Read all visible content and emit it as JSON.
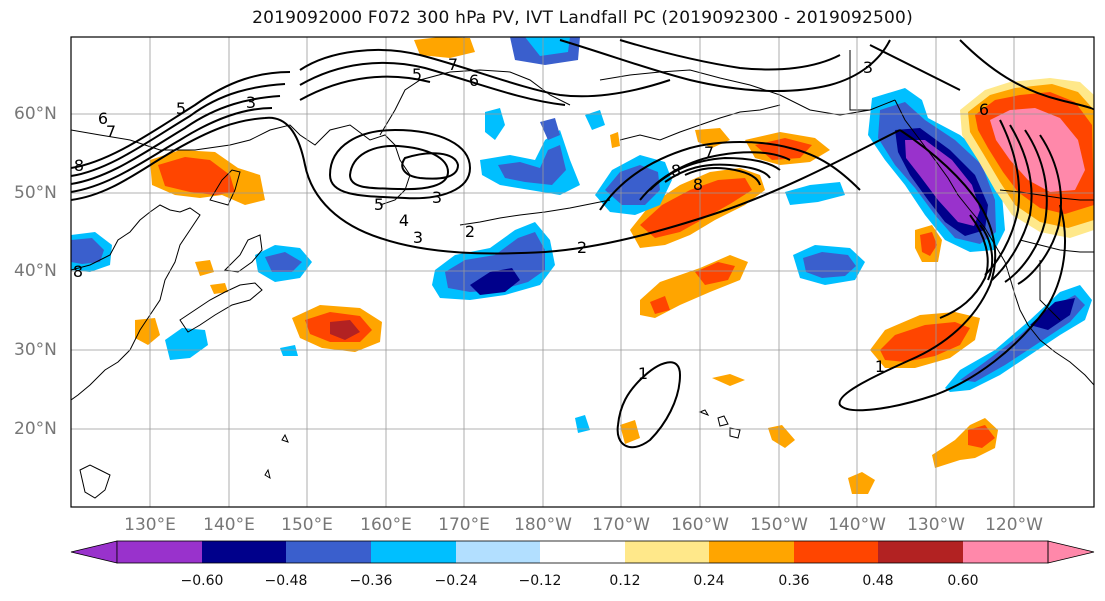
{
  "title": "2019092000 F072 300 hPa PV, IVT Landfall PC (2019092300 - 2019092500)",
  "latitude_labels": [
    "60°N",
    "50°N",
    "40°N",
    "30°N",
    "20°N"
  ],
  "longitude_labels": [
    "130°E",
    "140°E",
    "150°E",
    "160°E",
    "170°E",
    "180°W",
    "170°W",
    "160°W",
    "150°W",
    "140°W",
    "130°W",
    "120°W"
  ],
  "colorbar": {
    "ticks": [
      "−0.60",
      "−0.48",
      "−0.36",
      "−0.24",
      "−0.12",
      "0.12",
      "0.24",
      "0.36",
      "0.48",
      "0.60"
    ],
    "colors": [
      "#9932CC",
      "#00008B",
      "#3A5FCD",
      "#00BFFF",
      "#B2DFFF",
      "#FFFFFF",
      "#FFE88A",
      "#FFA500",
      "#FF4500",
      "#B22222",
      "#FF88AA"
    ]
  },
  "contour_labels": [
    "6",
    "7",
    "8",
    "5",
    "3",
    "5",
    "7",
    "6",
    "3",
    "4",
    "3",
    "5",
    "8",
    "8",
    "2",
    "3",
    "6",
    "1",
    "1",
    "8",
    "7",
    "2"
  ]
}
